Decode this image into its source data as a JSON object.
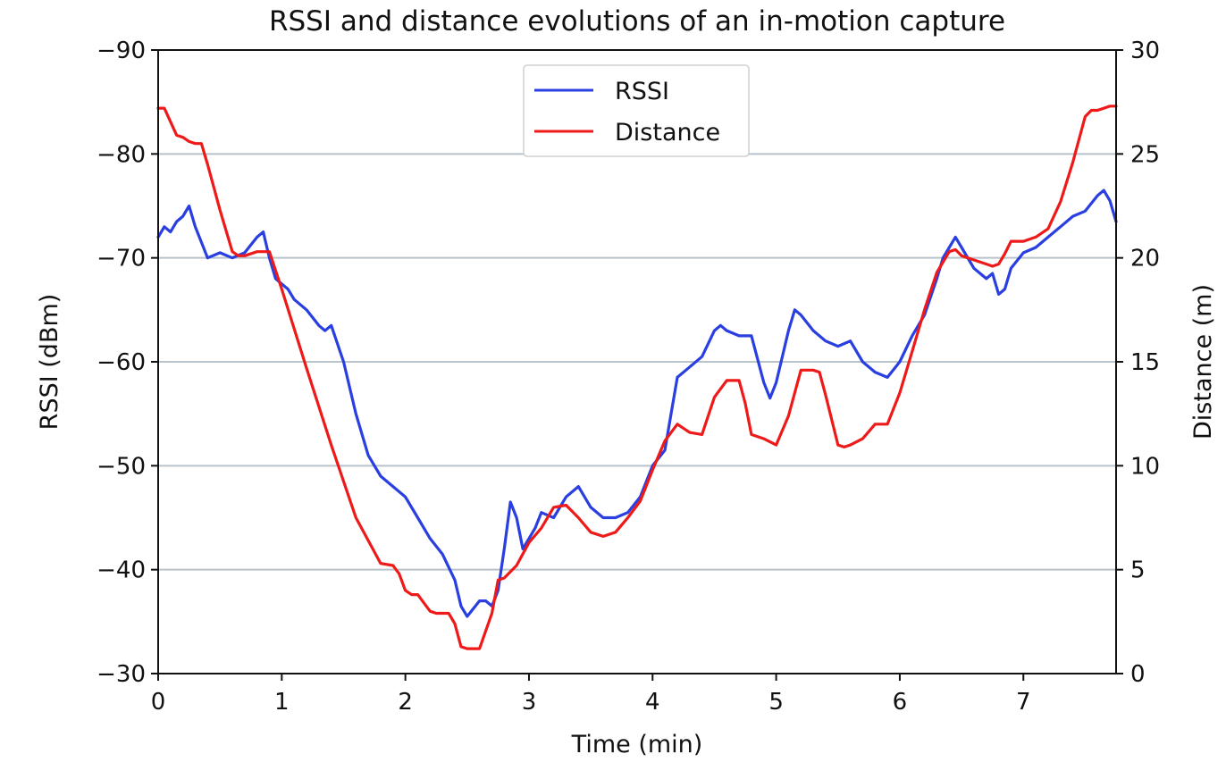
{
  "chart_data": {
    "type": "line",
    "title": "RSSI and distance evolutions of an in-motion capture",
    "xlabel": "Time (min)",
    "ylabel": "RSSI (dBm)",
    "y2label": "Distance (m)",
    "xlim": [
      0,
      7.75
    ],
    "ylim": [
      -30,
      -90
    ],
    "y2lim": [
      0,
      30
    ],
    "x_ticks": [
      "0",
      "1",
      "2",
      "3",
      "4",
      "5",
      "6",
      "7"
    ],
    "y_ticks": [
      "−90",
      "−80",
      "−70",
      "−60",
      "−50",
      "−40",
      "−30"
    ],
    "y2_ticks": [
      "30",
      "25",
      "20",
      "15",
      "10",
      "5",
      "0"
    ],
    "grid": "horizontal",
    "legend_position": "top-center",
    "series": [
      {
        "name": "RSSI",
        "axis": "left",
        "color": "#2a3fe0",
        "x": [
          0,
          0.05,
          0.1,
          0.15,
          0.2,
          0.25,
          0.3,
          0.35,
          0.4,
          0.5,
          0.6,
          0.7,
          0.8,
          0.85,
          0.9,
          0.95,
          1.0,
          1.05,
          1.1,
          1.2,
          1.3,
          1.35,
          1.4,
          1.5,
          1.6,
          1.7,
          1.8,
          1.9,
          2.0,
          2.1,
          2.2,
          2.3,
          2.4,
          2.45,
          2.5,
          2.6,
          2.65,
          2.7,
          2.75,
          2.8,
          2.85,
          2.9,
          2.95,
          3.0,
          3.05,
          3.1,
          3.2,
          3.3,
          3.4,
          3.5,
          3.6,
          3.7,
          3.8,
          3.9,
          4.0,
          4.1,
          4.15,
          4.2,
          4.3,
          4.4,
          4.5,
          4.55,
          4.6,
          4.7,
          4.8,
          4.9,
          4.95,
          5.0,
          5.05,
          5.1,
          5.15,
          5.2,
          5.3,
          5.4,
          5.5,
          5.6,
          5.7,
          5.8,
          5.9,
          6.0,
          6.1,
          6.2,
          6.3,
          6.35,
          6.4,
          6.45,
          6.5,
          6.6,
          6.7,
          6.75,
          6.8,
          6.85,
          6.9,
          7.0,
          7.1,
          7.2,
          7.3,
          7.4,
          7.5,
          7.6,
          7.65,
          7.7,
          7.75
        ],
        "y": [
          -72,
          -73,
          -72.5,
          -73.5,
          -74,
          -75,
          -73,
          -71.5,
          -70,
          -70.5,
          -70,
          -70.5,
          -72,
          -72.5,
          -70,
          -68,
          -67.5,
          -67,
          -66,
          -65,
          -63.5,
          -63,
          -63.5,
          -60,
          -55,
          -51,
          -49,
          -48,
          -47,
          -45,
          -43,
          -41.5,
          -39,
          -36.5,
          -35.5,
          -37,
          -37,
          -36.5,
          -38,
          -42,
          -46.5,
          -45,
          -42,
          -43,
          -44,
          -45.5,
          -45,
          -47,
          -48,
          -46,
          -45,
          -45,
          -45.5,
          -47,
          -50,
          -51.5,
          -55,
          -58.5,
          -59.5,
          -60.5,
          -63,
          -63.5,
          -63,
          -62.5,
          -62.5,
          -58,
          -56.5,
          -58,
          -60.5,
          -63,
          -65,
          -64.5,
          -63,
          -62,
          -61.5,
          -62,
          -60,
          -59,
          -58.5,
          -60,
          -62.5,
          -64.5,
          -68,
          -70,
          -71,
          -72,
          -71,
          -69,
          -68,
          -68.5,
          -66.5,
          -67,
          -69,
          -70.5,
          -71,
          -72,
          -73,
          -74,
          -74.5,
          -76,
          -76.5,
          -75.5,
          -73.5
        ]
      },
      {
        "name": "Distance",
        "axis": "right",
        "color": "#ee1a1a",
        "x": [
          0,
          0.05,
          0.15,
          0.2,
          0.25,
          0.3,
          0.35,
          0.4,
          0.5,
          0.6,
          0.65,
          0.7,
          0.8,
          0.9,
          1.0,
          1.2,
          1.4,
          1.6,
          1.8,
          1.9,
          1.95,
          2.0,
          2.05,
          2.1,
          2.15,
          2.2,
          2.25,
          2.3,
          2.35,
          2.4,
          2.45,
          2.5,
          2.55,
          2.6,
          2.7,
          2.75,
          2.8,
          2.9,
          3.0,
          3.1,
          3.2,
          3.3,
          3.4,
          3.5,
          3.6,
          3.7,
          3.8,
          3.9,
          4.0,
          4.1,
          4.2,
          4.3,
          4.4,
          4.5,
          4.6,
          4.7,
          4.75,
          4.8,
          4.9,
          5.0,
          5.1,
          5.2,
          5.3,
          5.35,
          5.4,
          5.5,
          5.55,
          5.6,
          5.7,
          5.8,
          5.9,
          6.0,
          6.1,
          6.2,
          6.3,
          6.4,
          6.45,
          6.5,
          6.6,
          6.7,
          6.75,
          6.8,
          6.85,
          6.9,
          7.0,
          7.1,
          7.2,
          7.3,
          7.4,
          7.5,
          7.55,
          7.6,
          7.7,
          7.75
        ],
        "y": [
          27.2,
          27.2,
          25.9,
          25.8,
          25.6,
          25.5,
          25.5,
          24.5,
          22.3,
          20.3,
          20.1,
          20.1,
          20.3,
          20.3,
          18.5,
          14.7,
          11.0,
          7.5,
          5.3,
          5.2,
          4.8,
          4.0,
          3.8,
          3.8,
          3.4,
          3.0,
          2.9,
          2.9,
          2.9,
          2.4,
          1.3,
          1.2,
          1.2,
          1.2,
          2.9,
          4.5,
          4.6,
          5.2,
          6.3,
          7.0,
          8.0,
          8.1,
          7.5,
          6.8,
          6.6,
          6.8,
          7.5,
          8.3,
          9.8,
          11.2,
          12.0,
          11.6,
          11.5,
          13.3,
          14.1,
          14.1,
          13.0,
          11.5,
          11.3,
          11.0,
          12.4,
          14.6,
          14.6,
          14.5,
          13.4,
          11.0,
          10.9,
          11.0,
          11.3,
          12.0,
          12.0,
          13.5,
          15.5,
          17.5,
          19.3,
          20.3,
          20.4,
          20.1,
          19.9,
          19.7,
          19.6,
          19.7,
          20.2,
          20.8,
          20.8,
          21.0,
          21.4,
          22.7,
          24.6,
          26.8,
          27.1,
          27.1,
          27.3,
          27.3
        ]
      }
    ]
  }
}
